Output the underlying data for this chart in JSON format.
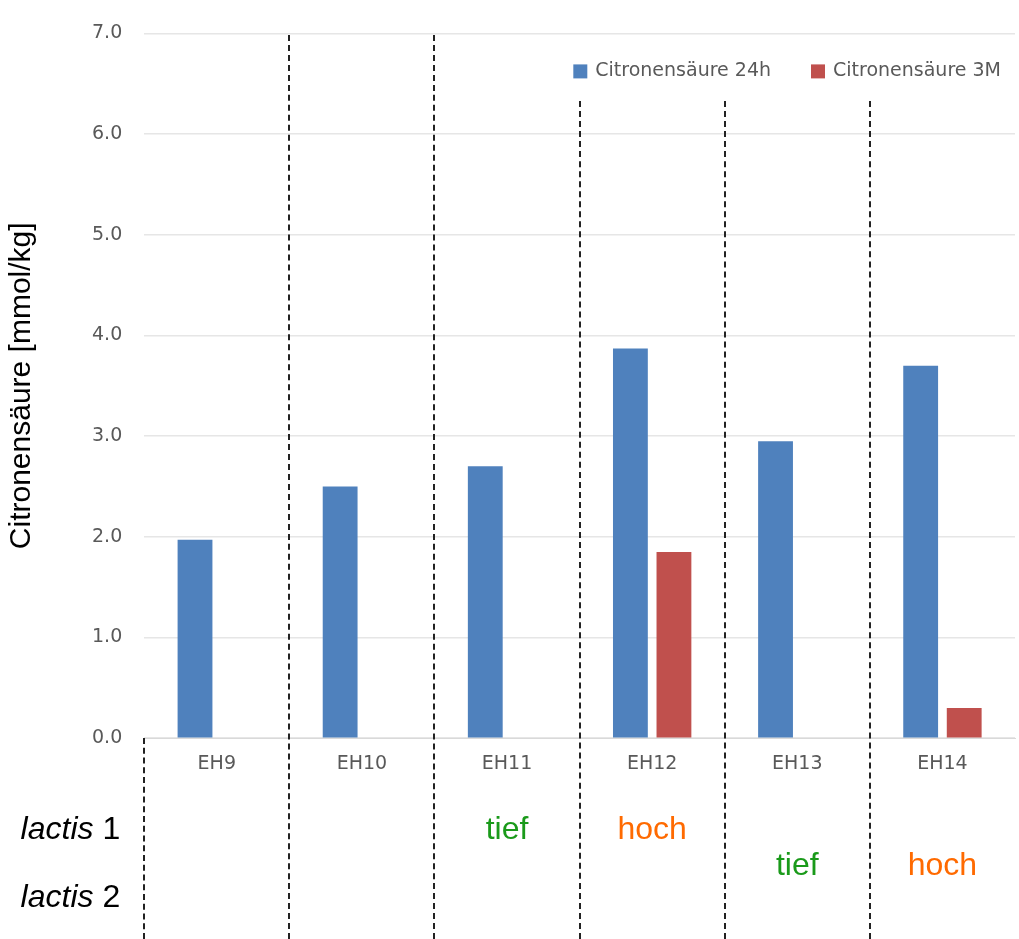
{
  "chart_data": {
    "type": "bar",
    "ylabel": "Citronensäure [mmol/kg]",
    "categories": [
      "EH9",
      "EH10",
      "EH11",
      "EH12",
      "EH13",
      "EH14"
    ],
    "series": [
      {
        "name": "Citronensäure 24h",
        "color": "#4f81bd",
        "values": [
          1.97,
          2.5,
          2.7,
          3.87,
          2.95,
          3.7
        ]
      },
      {
        "name": "Citronensäure 3M",
        "color": "#c0504d",
        "values": [
          null,
          null,
          null,
          1.85,
          null,
          0.3
        ]
      }
    ],
    "ylim": [
      0,
      7
    ],
    "yticks": [
      {
        "value": 0,
        "label": "0.0"
      },
      {
        "value": 1,
        "label": "1.0"
      },
      {
        "value": 2,
        "label": "2.0"
      },
      {
        "value": 3,
        "label": "3.0"
      },
      {
        "value": 4,
        "label": "4.0"
      },
      {
        "value": 5,
        "label": "5.0"
      },
      {
        "value": 6,
        "label": "6.0"
      },
      {
        "value": 7,
        "label": "7.0"
      }
    ],
    "grid": "y",
    "legend": "top right",
    "annotations": [
      "lactis 1",
      "lactis 2",
      "tief",
      "hoch",
      "tief",
      "hoch"
    ]
  }
}
